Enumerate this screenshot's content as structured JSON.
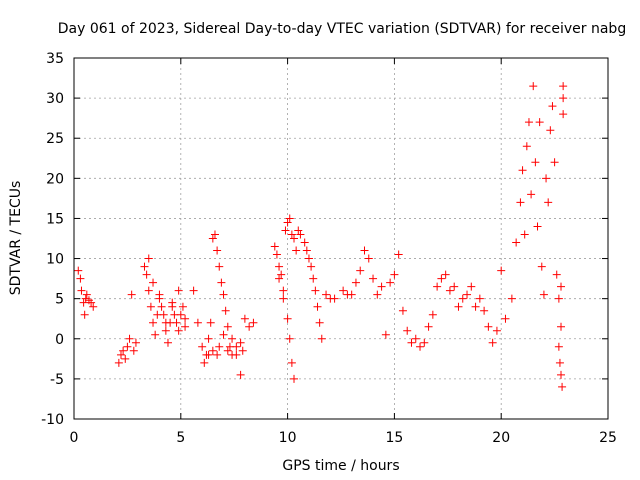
{
  "chart_data": {
    "type": "scatter",
    "title": "Day 061 of 2023, Sidereal Day-to-day VTEC variation (SDTVAR) for receiver nabg",
    "xlabel": "GPS time / hours",
    "ylabel": "SDTVAR / TECUs",
    "xlim": [
      0,
      25
    ],
    "ylim": [
      -10,
      35
    ],
    "xticks": [
      0,
      5,
      10,
      15,
      20,
      25
    ],
    "yticks": [
      -10,
      -5,
      0,
      5,
      10,
      15,
      20,
      25,
      30,
      35
    ],
    "xtick_labels": [
      "0",
      "5",
      "10",
      "15",
      "20",
      "25"
    ],
    "ytick_labels": [
      "-10",
      "-5",
      "0",
      "5",
      "10",
      "15",
      "20",
      "25",
      "30",
      "35"
    ],
    "grid": true,
    "marker": "+",
    "series": [
      {
        "name": "SDTVAR",
        "color": "#ff0000",
        "x": [
          0.2,
          0.3,
          0.35,
          0.45,
          0.5,
          0.55,
          0.6,
          0.7,
          0.8,
          0.9,
          2.1,
          2.2,
          2.3,
          2.4,
          2.5,
          2.6,
          2.7,
          2.8,
          2.9,
          3.3,
          3.4,
          3.5,
          3.6,
          3.7,
          3.8,
          3.9,
          4.0,
          4.1,
          4.2,
          4.3,
          4.4,
          4.5,
          4.6,
          4.7,
          4.8,
          4.9,
          5.0,
          5.1,
          5.2,
          3.5,
          3.7,
          4.0,
          4.3,
          4.6,
          4.9,
          5.2,
          5.6,
          5.8,
          6.0,
          6.1,
          6.2,
          6.3,
          6.4,
          6.5,
          6.6,
          6.7,
          6.8,
          6.9,
          7.0,
          7.1,
          7.2,
          7.3,
          7.4,
          7.6,
          7.8,
          8.0,
          8.2,
          8.4,
          6.3,
          6.5,
          6.7,
          6.8,
          7.0,
          7.2,
          7.4,
          7.6,
          7.8,
          7.9,
          9.4,
          9.5,
          9.6,
          9.7,
          9.8,
          9.9,
          10.0,
          10.1,
          10.2,
          10.3,
          10.4,
          10.5,
          10.6,
          9.6,
          9.8,
          10.0,
          10.1,
          10.2,
          10.3,
          10.8,
          10.9,
          11.0,
          11.1,
          11.2,
          11.3,
          11.4,
          11.5,
          11.6,
          11.8,
          12.0,
          12.2,
          12.6,
          12.8,
          13.0,
          13.2,
          13.4,
          13.6,
          13.8,
          14.0,
          14.2,
          14.4,
          14.6,
          14.8,
          15.0,
          15.2,
          15.4,
          15.6,
          15.8,
          16.0,
          16.2,
          16.4,
          16.6,
          16.8,
          17.0,
          17.2,
          17.4,
          17.6,
          17.8,
          18.0,
          18.2,
          18.4,
          18.6,
          18.8,
          19.0,
          19.2,
          19.4,
          19.6,
          19.8,
          20.0,
          20.2,
          20.5,
          20.7,
          20.9,
          21.0,
          21.1,
          21.2,
          21.3,
          21.4,
          21.5,
          21.6,
          21.7,
          21.8,
          21.9,
          22.0,
          22.1,
          22.2,
          22.3,
          22.4,
          22.5,
          22.6,
          22.7,
          22.8,
          22.9,
          22.7,
          22.75,
          22.8,
          22.8,
          22.85,
          22.9,
          22.9
        ],
        "y": [
          8.5,
          7.5,
          6.0,
          4.5,
          3.0,
          5.0,
          5.5,
          4.8,
          4.5,
          4.0,
          -3.0,
          -2.0,
          -1.5,
          -2.5,
          -1.0,
          0.0,
          5.5,
          -1.5,
          -0.5,
          9.0,
          8.0,
          6.0,
          4.0,
          2.0,
          0.5,
          3.0,
          5.5,
          4.0,
          3.0,
          1.0,
          -0.5,
          2.0,
          4.0,
          3.0,
          2.0,
          1.0,
          3.0,
          4.0,
          2.5,
          10.0,
          7.0,
          5.0,
          2.0,
          4.5,
          6.0,
          1.5,
          6.0,
          2.0,
          -1.0,
          -3.0,
          -2.0,
          0.0,
          2.0,
          12.5,
          13.0,
          11.0,
          9.0,
          7.0,
          5.5,
          3.5,
          1.5,
          -1.0,
          0.0,
          -2.0,
          -4.5,
          2.5,
          1.5,
          2.0,
          -2.0,
          -1.5,
          -2.0,
          -1.0,
          0.5,
          -1.5,
          -2.0,
          -1.0,
          -0.5,
          -1.5,
          11.5,
          10.5,
          9.0,
          8.0,
          6.0,
          13.5,
          14.5,
          15.0,
          13.0,
          12.5,
          11.0,
          13.5,
          13.0,
          7.5,
          5.0,
          2.5,
          0.0,
          -3.0,
          -5.0,
          12.0,
          11.0,
          10.0,
          9.0,
          7.5,
          6.0,
          4.0,
          2.0,
          0.0,
          5.5,
          5.0,
          5.0,
          6.0,
          5.5,
          5.5,
          7.0,
          8.5,
          11.0,
          10.0,
          7.5,
          5.5,
          6.5,
          0.5,
          7.0,
          8.0,
          10.5,
          3.5,
          1.0,
          -0.5,
          0.0,
          -1.0,
          -0.5,
          1.5,
          3.0,
          6.5,
          7.5,
          8.0,
          6.0,
          6.5,
          4.0,
          5.0,
          5.5,
          6.5,
          4.0,
          5.0,
          3.5,
          1.5,
          -0.5,
          1.0,
          8.5,
          2.5,
          5.0,
          12.0,
          17.0,
          21.0,
          13.0,
          24.0,
          27.0,
          18.0,
          31.5,
          22.0,
          14.0,
          27.0,
          9.0,
          5.5,
          20.0,
          17.0,
          26.0,
          29.0,
          22.0,
          8.0,
          5.0,
          1.5,
          30.0,
          -1.0,
          -3.0,
          -4.5,
          6.5,
          -6.0,
          31.5,
          28.0
        ]
      }
    ]
  }
}
